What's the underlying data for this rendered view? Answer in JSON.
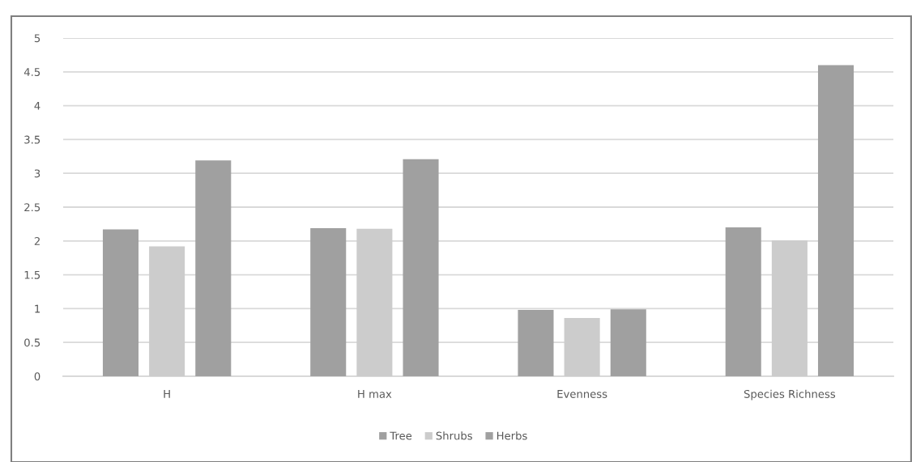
{
  "chart_data": {
    "type": "bar",
    "categories": [
      "H",
      "H max",
      "Evenness",
      "Species Richness"
    ],
    "series": [
      {
        "name": "Tree",
        "color": "#a0a0a0",
        "values": [
          2.17,
          2.19,
          0.98,
          2.2
        ]
      },
      {
        "name": "Shrubs",
        "color": "#cccccc",
        "values": [
          1.92,
          2.18,
          0.86,
          2.01
        ]
      },
      {
        "name": "Herbs",
        "color": "#a0a0a0",
        "values": [
          3.19,
          3.21,
          0.99,
          4.6
        ]
      }
    ],
    "ylim": [
      0,
      5
    ],
    "yticks": [
      0,
      0.5,
      1,
      1.5,
      2,
      2.5,
      3,
      3.5,
      4,
      4.5,
      5
    ],
    "grid": "y",
    "legend": "bottom"
  }
}
